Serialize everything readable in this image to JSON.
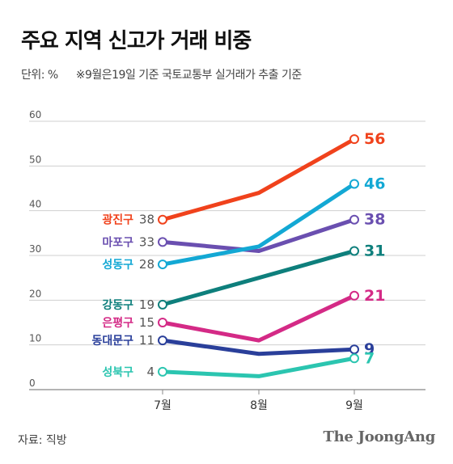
{
  "title": "주요 지역 신고가 거래 비중",
  "unit": "단위: %",
  "note": "※9월은19일 기준 국토교통부 실거래가 추출 기준",
  "source": "자료: 직방",
  "brand": "The JoongAng",
  "chart_data": {
    "type": "line",
    "categories": [
      "7월",
      "8월",
      "9월"
    ],
    "ylim": [
      0,
      60
    ],
    "yticks": [
      "0",
      "10",
      "20",
      "30",
      "40",
      "50",
      "60"
    ],
    "grid": true,
    "series": [
      {
        "name": "광진구",
        "color": "#f0421c",
        "values": [
          38,
          44,
          56
        ],
        "start_label": "38",
        "end_label": "56"
      },
      {
        "name": "마포구",
        "color": "#6a4fb0",
        "values": [
          33,
          31,
          38
        ],
        "start_label": "33",
        "end_label": "38"
      },
      {
        "name": "성동구",
        "color": "#13a8d4",
        "values": [
          28,
          32,
          46
        ],
        "start_label": "28",
        "end_label": "46"
      },
      {
        "name": "강동구",
        "color": "#0e7f7c",
        "values": [
          19,
          25,
          31
        ],
        "start_label": "19",
        "end_label": "31"
      },
      {
        "name": "은평구",
        "color": "#d42a86",
        "values": [
          15,
          11,
          21
        ],
        "start_label": "15",
        "end_label": "21"
      },
      {
        "name": "동대문구",
        "color": "#2a3f9a",
        "values": [
          11,
          8,
          9
        ],
        "start_label": "11",
        "end_label": "9"
      },
      {
        "name": "성북구",
        "color": "#2bc5b0",
        "values": [
          4,
          3,
          7
        ],
        "start_label": "4",
        "end_label": "7"
      }
    ]
  }
}
